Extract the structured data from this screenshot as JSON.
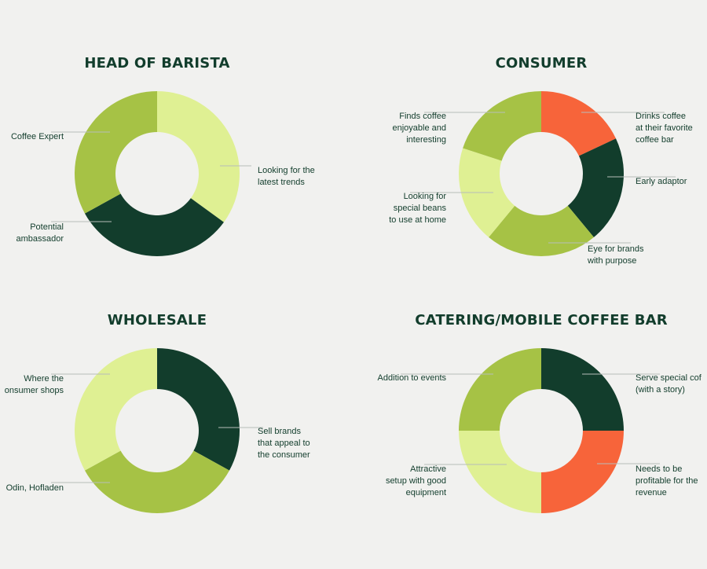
{
  "colors": {
    "background": "#f1f1ef",
    "dark_green": "#123d2c",
    "olive_green": "#a6c245",
    "light_green": "#dff093",
    "orange": "#f7643a",
    "leader_line": "#b7bdb9"
  },
  "chart_data": [
    {
      "type": "pie",
      "title": "HEAD OF BARISTA",
      "slices": [
        {
          "label": "Looking for the\nlatest trends",
          "value": 35,
          "color": "#dff093"
        },
        {
          "label": "Potential\nambassador",
          "value": 32,
          "color": "#123d2c"
        },
        {
          "label": "Coffee Expert",
          "value": 33,
          "color": "#a6c245"
        }
      ]
    },
    {
      "type": "pie",
      "title": "CONSUMER",
      "slices": [
        {
          "label": "Drinks coffee\nat their favorite\ncoffee bar",
          "value": 18,
          "color": "#f7643a"
        },
        {
          "label": "Early adaptor",
          "value": 21,
          "color": "#123d2c"
        },
        {
          "label": "Eye for brands\nwith purpose",
          "value": 22,
          "color": "#a6c245"
        },
        {
          "label": "Looking for\nspecial beans\nto use at home",
          "value": 19,
          "color": "#dff093"
        },
        {
          "label": "Finds coffee\nenjoyable and\ninteresting",
          "value": 20,
          "color": "#a6c245"
        }
      ]
    },
    {
      "type": "pie",
      "title": "WHOLESALE",
      "slices": [
        {
          "label": "Sell brands\nthat appeal to\nthe consumer",
          "value": 33,
          "color": "#123d2c"
        },
        {
          "label": "Odin, Hofladen",
          "value": 34,
          "color": "#a6c245"
        },
        {
          "label": "Where the\nonsumer shops",
          "value": 33,
          "color": "#dff093"
        }
      ]
    },
    {
      "type": "pie",
      "title": "CATERING/MOBILE COFFEE BAR",
      "slices": [
        {
          "label": "Serve special cof\n(with a story)",
          "value": 25,
          "color": "#123d2c"
        },
        {
          "label": "Needs to be\nprofitable for the\nrevenue",
          "value": 25,
          "color": "#f7643a"
        },
        {
          "label": "Attractive\nsetup with good\nequipment",
          "value": 25,
          "color": "#dff093"
        },
        {
          "label": "Addition to events",
          "value": 25,
          "color": "#a6c245"
        }
      ]
    }
  ]
}
